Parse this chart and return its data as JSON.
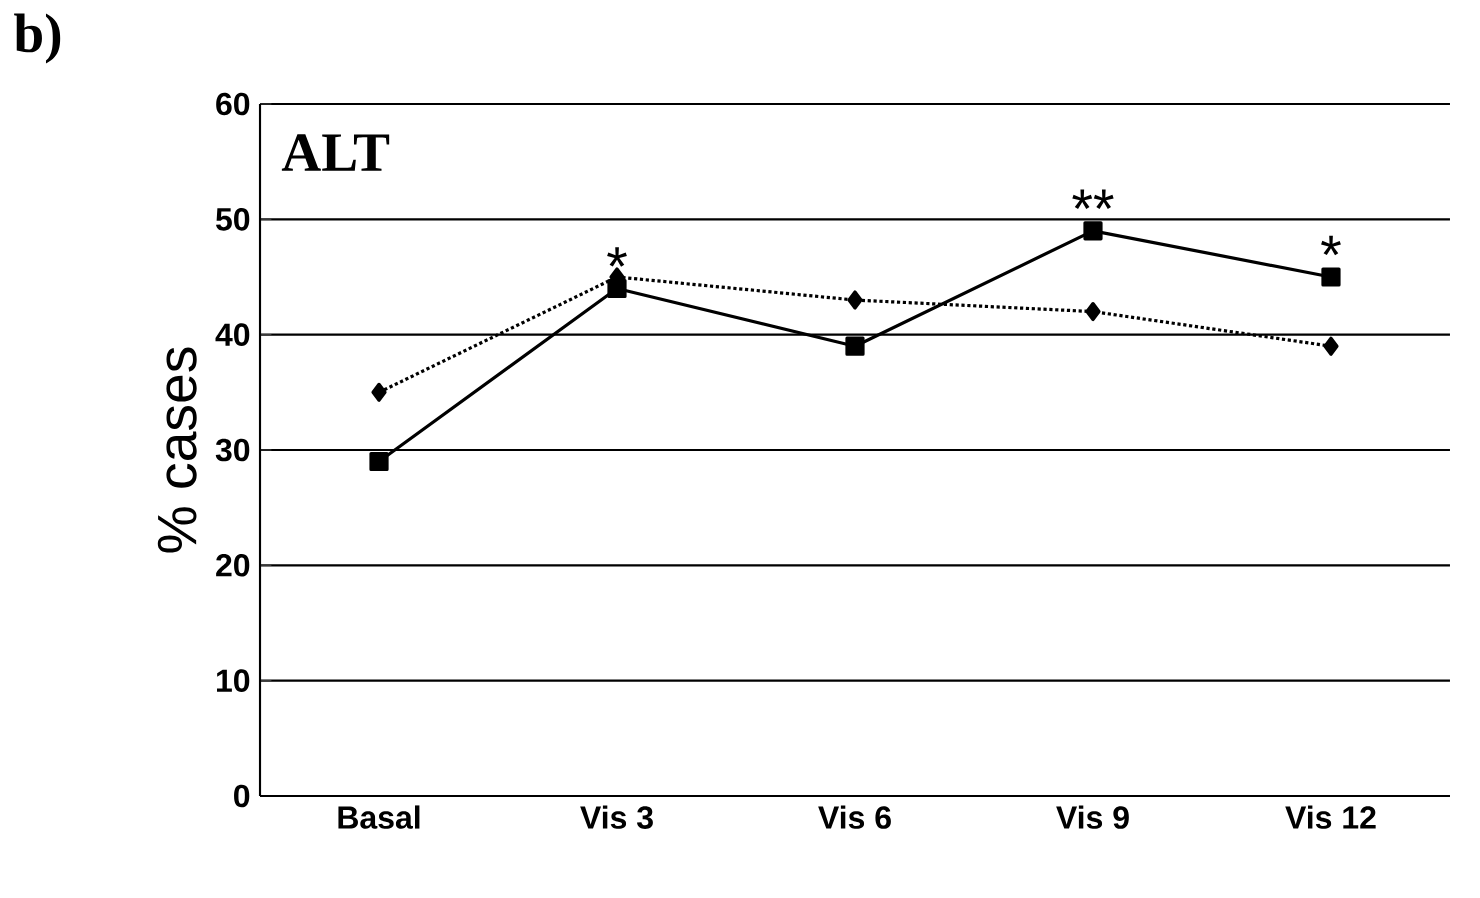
{
  "chart_data": {
    "type": "line",
    "title": "ALT",
    "ylabel": "% cases",
    "categories": [
      "Basal",
      "Vis 3",
      "Vis 6",
      "Vis 9",
      "Vis 12"
    ],
    "series": [
      {
        "color": "#000000",
        "values": [
          29,
          44,
          39,
          49,
          45
        ],
        "marker": "square",
        "line_style": "solid"
      },
      {
        "color": "#000000",
        "values": [
          35,
          45,
          43,
          42,
          39
        ],
        "marker": "diamond",
        "line_style": "dotted"
      }
    ],
    "ylim": [
      0,
      60
    ],
    "yticks": [
      0,
      10,
      20,
      30,
      40,
      50,
      60
    ],
    "grid": "y",
    "annotations": [
      "b)",
      {
        "text": "*",
        "x": "Vis 3",
        "y": 44
      },
      {
        "text": "**",
        "x": "Vis 9",
        "y": 49
      },
      {
        "text": "*",
        "x": "Vis 12",
        "y": 45
      }
    ]
  }
}
